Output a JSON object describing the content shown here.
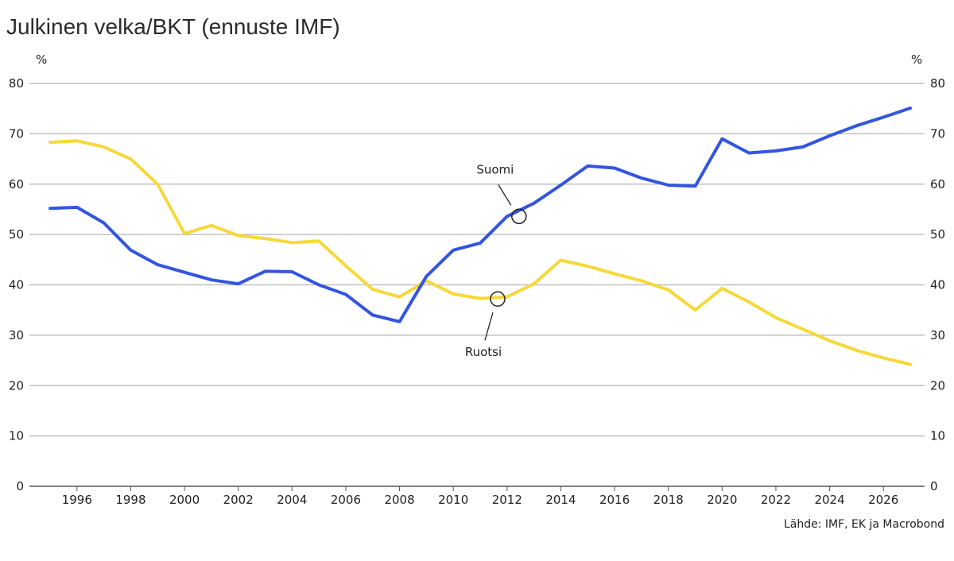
{
  "chart_data": {
    "type": "line",
    "title": "Julkinen velka/BKT (ennuste IMF)",
    "ylabel_left": "%",
    "ylabel_right": "%",
    "source": "Lähde: IMF, EK ja Macrobond",
    "ylim": [
      0,
      80
    ],
    "yticks": [
      "0",
      "10",
      "20",
      "30",
      "40",
      "50",
      "60",
      "70",
      "80"
    ],
    "xlim": [
      1995,
      2027.5
    ],
    "xticks": [
      "1996",
      "1998",
      "2000",
      "2002",
      "2004",
      "2006",
      "2008",
      "2010",
      "2012",
      "2014",
      "2016",
      "2018",
      "2020",
      "2022",
      "2024",
      "2026"
    ],
    "grid": true,
    "colors": {
      "suomi": "#3355e0",
      "ruotsi": "#f5d93a"
    },
    "series": [
      {
        "name": "Suomi",
        "x": [
          1995,
          1996,
          1997,
          1998,
          1999,
          2000,
          2001,
          2002,
          2003,
          2004,
          2005,
          2006,
          2007,
          2008,
          2009,
          2010,
          2011,
          2012,
          2013,
          2014,
          2015,
          2016,
          2017,
          2018,
          2019,
          2020,
          2021,
          2022,
          2023,
          2024,
          2025,
          2026,
          2027
        ],
        "values": [
          55.2,
          55.4,
          52.3,
          46.9,
          44.0,
          42.5,
          41.0,
          40.2,
          42.7,
          42.6,
          40.0,
          38.1,
          34.0,
          32.7,
          41.7,
          46.9,
          48.3,
          53.6,
          56.2,
          59.8,
          63.6,
          63.2,
          61.2,
          59.8,
          59.6,
          69.0,
          66.2,
          66.6,
          67.4,
          69.6,
          71.6,
          73.3,
          75.1
        ]
      },
      {
        "name": "Ruotsi",
        "x": [
          1995,
          1996,
          1997,
          1998,
          1999,
          2000,
          2001,
          2002,
          2003,
          2004,
          2005,
          2006,
          2007,
          2008,
          2009,
          2010,
          2011,
          2012,
          2013,
          2014,
          2015,
          2016,
          2017,
          2018,
          2019,
          2020,
          2021,
          2022,
          2023,
          2024,
          2025,
          2026,
          2027
        ],
        "values": [
          68.3,
          68.6,
          67.4,
          65.0,
          60.0,
          50.2,
          51.8,
          49.8,
          49.2,
          48.4,
          48.7,
          43.8,
          39.1,
          37.6,
          40.8,
          38.2,
          37.3,
          37.6,
          40.2,
          44.9,
          43.7,
          42.2,
          40.8,
          39.0,
          35.0,
          39.3,
          36.6,
          33.5,
          31.2,
          28.9,
          27.0,
          25.5,
          24.2
        ]
      }
    ],
    "annotations": [
      {
        "label": "Suomi",
        "series": "Suomi",
        "x": 2012
      },
      {
        "label": "Ruotsi",
        "series": "Ruotsi",
        "x": 2011
      }
    ]
  }
}
